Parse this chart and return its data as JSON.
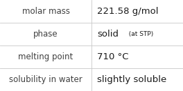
{
  "rows": [
    {
      "label": "molar mass",
      "value_parts": [
        {
          "text": "221.58 g/mol",
          "bold": false,
          "size": 9.5
        }
      ]
    },
    {
      "label": "phase",
      "value_parts": [
        {
          "text": "solid",
          "bold": false,
          "size": 9.5
        },
        {
          "text": "  (at STP)",
          "bold": false,
          "size": 6.5
        }
      ]
    },
    {
      "label": "melting point",
      "value_parts": [
        {
          "text": "710 °C",
          "bold": false,
          "size": 9.5
        }
      ]
    },
    {
      "label": "solubility in water",
      "value_parts": [
        {
          "text": "slightly soluble",
          "bold": false,
          "size": 9.5
        }
      ]
    }
  ],
  "col_split": 0.5,
  "bg_color": "#ffffff",
  "line_color": "#c8c8c8",
  "label_color": "#404040",
  "value_color": "#1a1a1a",
  "label_fontsize": 8.5,
  "figwidth": 2.64,
  "figheight": 1.32,
  "dpi": 100
}
